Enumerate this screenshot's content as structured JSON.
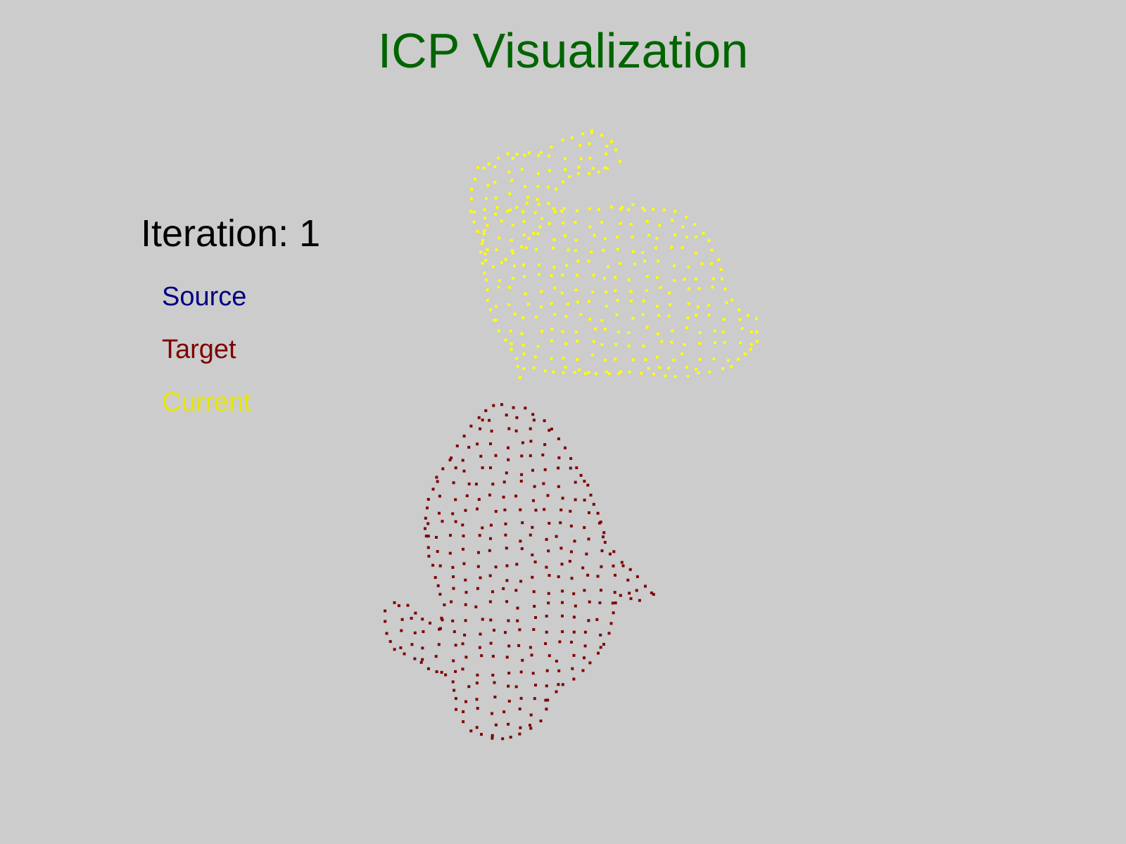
{
  "window": {
    "title": "ICP Visualization",
    "background": "#cccccc",
    "title_color": "#006400"
  },
  "status": {
    "iteration_label": "Iteration: 1"
  },
  "legend": {
    "items": [
      {
        "label": "Source",
        "color": "#000080"
      },
      {
        "label": "Target",
        "color": "#800000"
      },
      {
        "label": "Current",
        "color": "#e6e600"
      }
    ]
  },
  "point_clouds": {
    "target": {
      "label": "Target",
      "color": "#800000",
      "visible": true
    },
    "current": {
      "label": "Current",
      "color": "#ffff00",
      "visible": true
    }
  }
}
